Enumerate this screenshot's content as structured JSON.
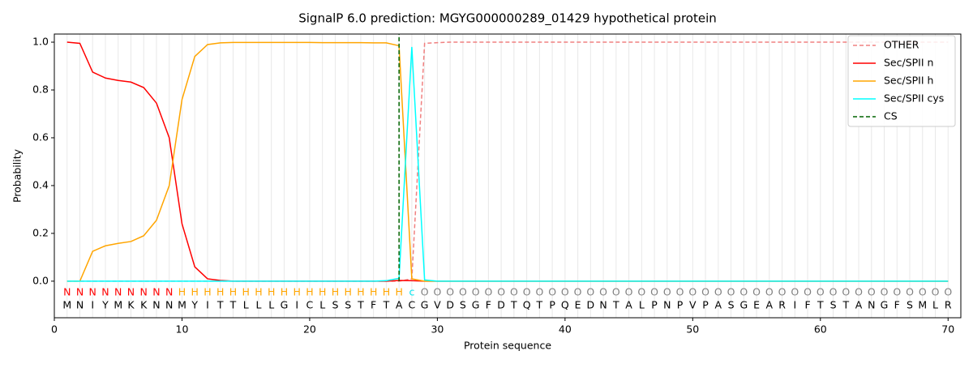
{
  "chart_data": {
    "type": "line",
    "title": "SignalP 6.0 prediction: MGYG000000289_01429 hypothetical protein",
    "xlabel": "Protein sequence",
    "ylabel": "Probability",
    "xlim": [
      0,
      71
    ],
    "ylim": [
      -0.153,
      1.034
    ],
    "xticks": [
      0,
      10,
      20,
      30,
      40,
      50,
      60,
      70
    ],
    "yticks": [
      {
        "value": 0,
        "label": "0.0"
      },
      0.2,
      0.4,
      0.6,
      0.8,
      {
        "value": 1,
        "label": "1.0"
      }
    ],
    "x": [
      1,
      2,
      3,
      4,
      5,
      6,
      7,
      8,
      9,
      10,
      11,
      12,
      13,
      14,
      15,
      16,
      17,
      18,
      19,
      20,
      21,
      22,
      23,
      24,
      25,
      26,
      27,
      28,
      29,
      30,
      31,
      32,
      33,
      34,
      35,
      36,
      37,
      38,
      39,
      40,
      41,
      42,
      43,
      44,
      45,
      46,
      47,
      48,
      49,
      50,
      51,
      52,
      53,
      54,
      55,
      56,
      57,
      58,
      59,
      60,
      61,
      62,
      63,
      64,
      65,
      66,
      67,
      68,
      69,
      70
    ],
    "sequence": [
      "M",
      "N",
      "I",
      "Y",
      "M",
      "K",
      "K",
      "N",
      "N",
      "M",
      "Y",
      "I",
      "T",
      "T",
      "L",
      "L",
      "L",
      "G",
      "I",
      "C",
      "L",
      "S",
      "S",
      "T",
      "F",
      "T",
      "A",
      "C",
      "G",
      "V",
      "D",
      "S",
      "G",
      "F",
      "D",
      "T",
      "Q",
      "T",
      "P",
      "Q",
      "E",
      "D",
      "N",
      "T",
      "A",
      "L",
      "P",
      "N",
      "P",
      "V",
      "P",
      "A",
      "S",
      "G",
      "E",
      "A",
      "R",
      "I",
      "F",
      "T",
      "S",
      "T",
      "A",
      "N",
      "G",
      "F",
      "S",
      "M",
      "L",
      "R"
    ],
    "regions": [
      "N",
      "N",
      "N",
      "N",
      "N",
      "N",
      "N",
      "N",
      "N",
      "H",
      "H",
      "H",
      "H",
      "H",
      "H",
      "H",
      "H",
      "H",
      "H",
      "H",
      "H",
      "H",
      "H",
      "H",
      "H",
      "H",
      "H",
      "c",
      "O",
      "O",
      "O",
      "O",
      "O",
      "O",
      "O",
      "O",
      "O",
      "O",
      "O",
      "O",
      "O",
      "O",
      "O",
      "O",
      "O",
      "O",
      "O",
      "O",
      "O",
      "O",
      "O",
      "O",
      "O",
      "O",
      "O",
      "O",
      "O",
      "O",
      "O",
      "O",
      "O",
      "O",
      "O",
      "O",
      "O",
      "O",
      "O",
      "O",
      "O",
      "O"
    ],
    "region_colors": {
      "N": "#ff0000",
      "H": "#ffa500",
      "c": "#00e5ee",
      "O": "#808080"
    },
    "series": [
      {
        "name": "OTHER",
        "color": "#f08080",
        "dash": true,
        "values": [
          0,
          0,
          0,
          0,
          0,
          0,
          0,
          0,
          0,
          0,
          0,
          0,
          0,
          0,
          0,
          0,
          0,
          0,
          0,
          0,
          0,
          0,
          0,
          0,
          0,
          0,
          0,
          0.01,
          0.995,
          0.998,
          1,
          1,
          1,
          1,
          1,
          1,
          1,
          1,
          1,
          1,
          1,
          1,
          1,
          1,
          1,
          1,
          1,
          1,
          1,
          1,
          1,
          1,
          1,
          1,
          1,
          1,
          1,
          1,
          1,
          1,
          1,
          1,
          1,
          1,
          1,
          1,
          1,
          1,
          1,
          1
        ]
      },
      {
        "name": "Sec/SPII n",
        "color": "#ff0000",
        "dash": false,
        "values": [
          1.0,
          0.995,
          0.875,
          0.85,
          0.84,
          0.833,
          0.81,
          0.745,
          0.6,
          0.24,
          0.06,
          0.01,
          0.003,
          0,
          0,
          0,
          0,
          0,
          0,
          0,
          0,
          0,
          0,
          0,
          0,
          0,
          0.003,
          0.002,
          0,
          0,
          0,
          0,
          0,
          0,
          0,
          0,
          0,
          0,
          0,
          0,
          0,
          0,
          0,
          0,
          0,
          0,
          0,
          0,
          0,
          0,
          0,
          0,
          0,
          0,
          0,
          0,
          0,
          0,
          0,
          0,
          0,
          0,
          0,
          0,
          0,
          0,
          0,
          0,
          0,
          0
        ]
      },
      {
        "name": "Sec/SPII h",
        "color": "#ffa500",
        "dash": false,
        "values": [
          0,
          0,
          0.125,
          0.148,
          0.158,
          0.166,
          0.19,
          0.255,
          0.4,
          0.76,
          0.94,
          0.99,
          0.997,
          0.999,
          0.999,
          0.999,
          0.999,
          0.999,
          0.999,
          0.999,
          0.998,
          0.998,
          0.998,
          0.998,
          0.997,
          0.997,
          0.985,
          0.01,
          0,
          0,
          0,
          0,
          0,
          0,
          0,
          0,
          0,
          0,
          0,
          0,
          0,
          0,
          0,
          0,
          0,
          0,
          0,
          0,
          0,
          0,
          0,
          0,
          0,
          0,
          0,
          0,
          0,
          0,
          0,
          0,
          0,
          0,
          0,
          0,
          0,
          0,
          0,
          0,
          0,
          0
        ]
      },
      {
        "name": "Sec/SPII cys",
        "color": "#00ffff",
        "dash": false,
        "values": [
          0,
          0,
          0,
          0,
          0,
          0,
          0,
          0,
          0,
          0,
          0,
          0,
          0,
          0,
          0,
          0,
          0,
          0,
          0,
          0,
          0,
          0,
          0,
          0,
          0,
          0.002,
          0.012,
          0.98,
          0.005,
          0,
          0,
          0,
          0,
          0,
          0,
          0,
          0,
          0,
          0,
          0,
          0,
          0,
          0,
          0,
          0,
          0,
          0,
          0,
          0,
          0,
          0,
          0,
          0,
          0,
          0,
          0,
          0,
          0,
          0,
          0,
          0,
          0,
          0,
          0,
          0,
          0,
          0,
          0,
          0,
          0
        ]
      }
    ],
    "cs": {
      "name": "CS",
      "color": "#006400",
      "x": 27
    },
    "xgrid": true,
    "legend": "upper right"
  }
}
